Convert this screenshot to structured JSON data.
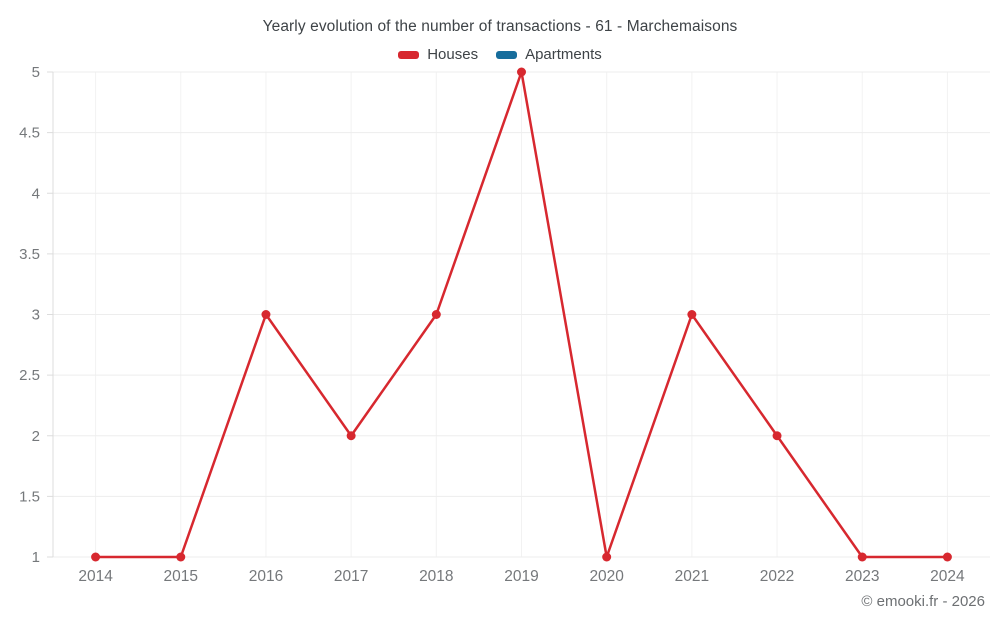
{
  "title": "Yearly evolution of the number of transactions - 61 - Marchemaisons",
  "footer": {
    "copyright": "© emooki.fr - 2026"
  },
  "colors": {
    "houses": "#d7282f",
    "apartments": "#176d9c",
    "grid_horizontal": "#ededed",
    "grid_vertical": "#f2f2f2",
    "axis_line": "#dcdcdc",
    "tick_label": "#75787b",
    "title_text": "#3e4347",
    "background": "#ffffff"
  },
  "chart_data": {
    "type": "line",
    "title": "Yearly evolution of the number of transactions - 61 - Marchemaisons",
    "categories": [
      "2014",
      "2015",
      "2016",
      "2017",
      "2018",
      "2019",
      "2020",
      "2021",
      "2022",
      "2023",
      "2024"
    ],
    "series": [
      {
        "name": "Houses",
        "color": "#d7282f",
        "values": [
          1,
          1,
          3,
          2,
          3,
          5,
          1,
          3,
          2,
          1,
          1
        ]
      },
      {
        "name": "Apartments",
        "color": "#176d9c",
        "values": []
      }
    ],
    "xlabel": "",
    "ylabel": "",
    "ylim": [
      1,
      5
    ],
    "ytick_step": 0.5,
    "grid": true,
    "legend_position": "top"
  }
}
